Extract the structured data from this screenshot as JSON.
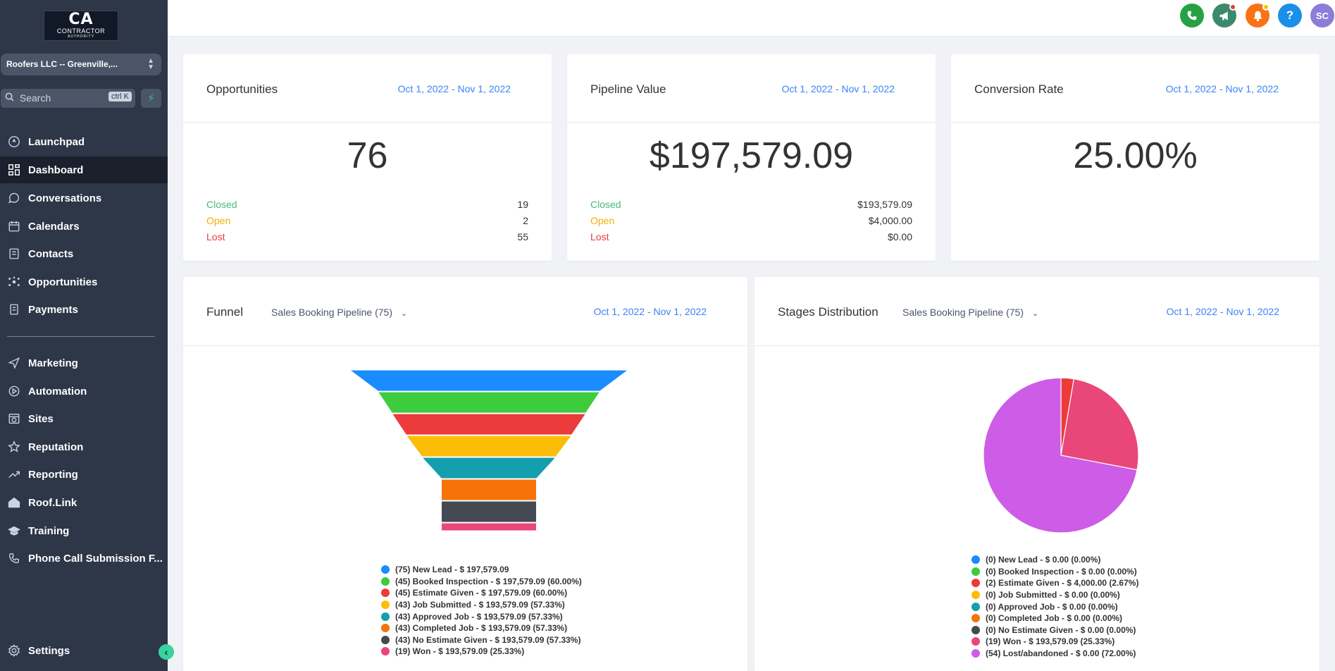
{
  "logo": {
    "big": "CA",
    "line1": "CONTRACTOR",
    "line2": "AUTHORITY"
  },
  "account": {
    "name": "Roofers LLC -- Greenville,..."
  },
  "search": {
    "placeholder": "Search",
    "shortcut": "ctrl K"
  },
  "nav": {
    "launchpad": "Launchpad",
    "dashboard": "Dashboard",
    "conversations": "Conversations",
    "calendars": "Calendars",
    "contacts": "Contacts",
    "opportunities": "Opportunities",
    "payments": "Payments",
    "marketing": "Marketing",
    "automation": "Automation",
    "sites": "Sites",
    "reputation": "Reputation",
    "reporting": "Reporting",
    "rooflink": "Roof.Link",
    "training": "Training",
    "phone": "Phone Call Submission F...",
    "settings": "Settings"
  },
  "topbar": {
    "avatar": "SC",
    "help": "?",
    "colors": {
      "phone": "#25a244",
      "announce": "#3a8a6e",
      "bell": "#f97316",
      "help": "#1a8fe8",
      "avatar": "#8b7ed8"
    }
  },
  "opportunities": {
    "title": "Opportunities",
    "date": "Oct 1, 2022 - Nov 1, 2022",
    "total": "76",
    "closed_label": "Closed",
    "closed": "19",
    "open_label": "Open",
    "open": "2",
    "lost_label": "Lost",
    "lost": "55"
  },
  "pipeline": {
    "title": "Pipeline Value",
    "date": "Oct 1, 2022 - Nov 1, 2022",
    "total": "$197,579.09",
    "closed_label": "Closed",
    "closed": "$193,579.09",
    "open_label": "Open",
    "open": "$4,000.00",
    "lost_label": "Lost",
    "lost": "$0.00"
  },
  "conversion": {
    "title": "Conversion Rate",
    "date": "Oct 1, 2022 - Nov 1, 2022",
    "rate": "25.00%"
  },
  "funnel": {
    "title": "Funnel",
    "pipeline": "Sales Booking Pipeline (75)",
    "date": "Oct 1, 2022 - Nov 1, 2022",
    "legend": [
      {
        "text": "(75) New Lead - $ 197,579.09",
        "color": "#1a8cff",
        "value": 75
      },
      {
        "text": "(45) Booked Inspection - $ 197,579.09 (60.00%)",
        "color": "#3dcc3d",
        "value": 45
      },
      {
        "text": "(45) Estimate Given - $ 197,579.09 (60.00%)",
        "color": "#eb3b3b",
        "value": 45
      },
      {
        "text": "(43) Job Submitted - $ 193,579.09 (57.33%)",
        "color": "#fbbd08",
        "value": 43
      },
      {
        "text": "(43) Approved Job - $ 193,579.09 (57.33%)",
        "color": "#139fad",
        "value": 43
      },
      {
        "text": "(43) Completed Job - $ 193,579.09 (57.33%)",
        "color": "#f6730a",
        "value": 43
      },
      {
        "text": "(43) No Estimate Given - $ 193,579.09 (57.33%)",
        "color": "#454a52",
        "value": 43
      },
      {
        "text": "(19) Won - $ 193,579.09 (25.33%)",
        "color": "#e9467a",
        "value": 19
      }
    ]
  },
  "stages": {
    "title": "Stages Distribution",
    "pipeline": "Sales Booking Pipeline (75)",
    "date": "Oct 1, 2022 - Nov 1, 2022",
    "legend": [
      {
        "text": "(0) New Lead - $ 0.00 (0.00%)",
        "color": "#1a8cff",
        "value": 0
      },
      {
        "text": "(0) Booked Inspection - $ 0.00 (0.00%)",
        "color": "#3dcc3d",
        "value": 0
      },
      {
        "text": "(2) Estimate Given - $ 4,000.00 (2.67%)",
        "color": "#eb3b3b",
        "value": 2
      },
      {
        "text": "(0) Job Submitted - $ 0.00 (0.00%)",
        "color": "#fbbd08",
        "value": 0
      },
      {
        "text": "(0) Approved Job - $ 0.00 (0.00%)",
        "color": "#139fad",
        "value": 0
      },
      {
        "text": "(0) Completed Job - $ 0.00 (0.00%)",
        "color": "#f6730a",
        "value": 0
      },
      {
        "text": "(0) No Estimate Given - $ 0.00 (0.00%)",
        "color": "#454a52",
        "value": 0
      },
      {
        "text": "(19) Won - $ 193,579.09 (25.33%)",
        "color": "#e9467a",
        "value": 19
      },
      {
        "text": "(54) Lost/abandoned - $ 0.00 (72.00%)",
        "color": "#cd5ce6",
        "value": 54
      }
    ]
  }
}
